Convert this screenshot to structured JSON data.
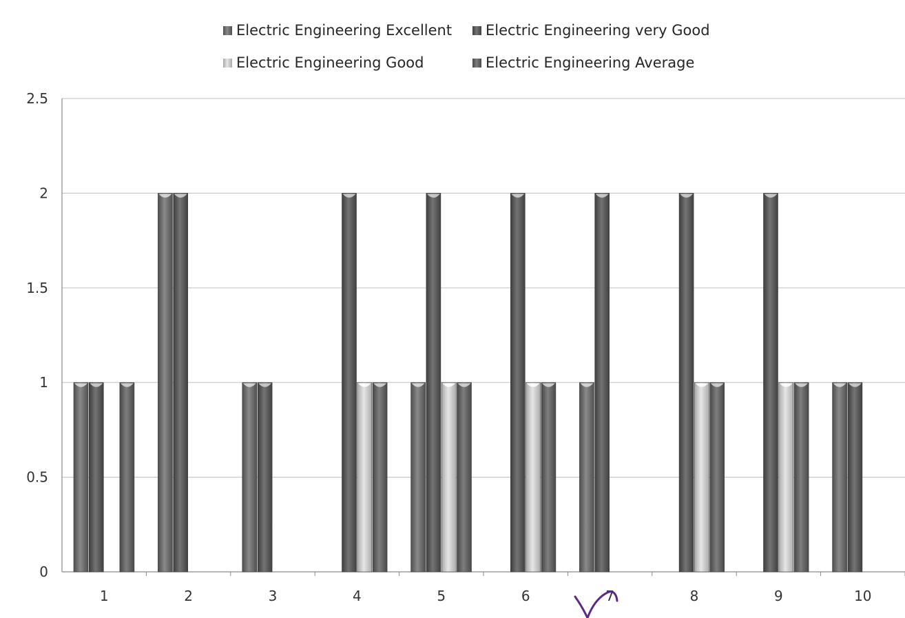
{
  "colors": {
    "excellent": "#6f6f6f",
    "very_good": "#5a5a5a",
    "good": "#c8c8c8",
    "average": "#676767",
    "grid": "#c9c9c9",
    "axis": "#8a8a8a"
  },
  "chart_data": {
    "type": "bar",
    "categories": [
      "1",
      "2",
      "3",
      "4",
      "5",
      "6",
      "7",
      "8",
      "9",
      "10"
    ],
    "series": [
      {
        "name": "Electric Engineering Excellent",
        "values": [
          1,
          2,
          1,
          0,
          1,
          0,
          1,
          0,
          0,
          1
        ]
      },
      {
        "name": "Electric Engineering very Good",
        "values": [
          1,
          2,
          1,
          2,
          2,
          2,
          2,
          2,
          2,
          1
        ]
      },
      {
        "name": "Electric Engineering Good",
        "values": [
          0,
          0,
          0,
          1,
          1,
          1,
          0,
          1,
          1,
          0
        ]
      },
      {
        "name": "Electric Engineering Average",
        "values": [
          1,
          0,
          0,
          1,
          1,
          1,
          0,
          1,
          1,
          0
        ]
      }
    ],
    "yticks": [
      "0",
      "0.5",
      "1",
      "1.5",
      "2",
      "2.5"
    ],
    "ylim": [
      0,
      2.5
    ],
    "grid": true,
    "legend_position": "top",
    "title": "",
    "xlabel": "",
    "ylabel": ""
  }
}
